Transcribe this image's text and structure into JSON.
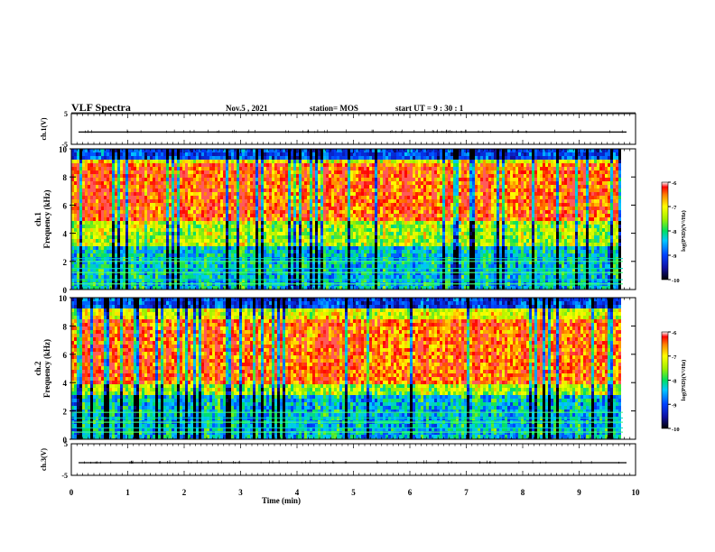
{
  "header": {
    "title": "VLF Spectra",
    "date": "Nov.5  , 2021",
    "station": "station= MOS",
    "start_ut": "start  UT =   9  : 30 : 1"
  },
  "chart_data": [
    {
      "type": "line",
      "panel": "ch1 waveform",
      "ylabel": "ch.1(V)",
      "ylim": [
        -5,
        5
      ],
      "y_tick_labels": [
        "5",
        "-5"
      ],
      "series": [
        {
          "values_approx_constant": -1
        }
      ]
    },
    {
      "type": "heatmap",
      "panel": "ch1 spectrogram",
      "ylabel": "ch.1\nFrequency (kHz)",
      "xlim": [
        0,
        10
      ],
      "ylim": [
        0,
        10
      ],
      "y_tick_labels": [
        "0",
        "2",
        "4",
        "6",
        "8",
        "10"
      ],
      "colorbar": {
        "label": "log(PSD)(V²/Hz)",
        "range": [
          -10,
          -6
        ],
        "tick_labels": [
          "-6",
          "-7",
          "-8",
          "-9",
          "-10"
        ]
      },
      "intense_band_khz": [
        5,
        9
      ],
      "horizontal_lines_khz": [
        0.4,
        0.7,
        1.2,
        1.5,
        2.0,
        2.2
      ]
    },
    {
      "type": "heatmap",
      "panel": "ch2 spectrogram",
      "ylabel": "ch.2\nFrequency (kHz)",
      "xlim": [
        0,
        10
      ],
      "ylim": [
        0,
        10
      ],
      "y_tick_labels": [
        "0",
        "2",
        "4",
        "6",
        "8",
        "10"
      ],
      "colorbar": {
        "label": "log(PSD)(V²/Hz)",
        "range": [
          -10,
          -6
        ],
        "tick_labels": [
          "-6",
          "-7",
          "-8",
          "-9",
          "-10"
        ]
      },
      "intense_band_khz": [
        4,
        8.5
      ],
      "horizontal_lines_khz": [
        0.5,
        0.8,
        1.2,
        1.5,
        1.9
      ]
    },
    {
      "type": "line",
      "panel": "ch3 waveform",
      "ylabel": "ch.3(V)",
      "ylim": [
        -5,
        5
      ],
      "y_tick_labels": [
        "5",
        "-5"
      ],
      "xlabel": "Time  (min)",
      "xlim": [
        0,
        10
      ],
      "x_tick_labels": [
        "0",
        "1",
        "2",
        "3",
        "4",
        "5",
        "6",
        "7",
        "8",
        "9",
        "10"
      ],
      "series": [
        {
          "values_approx_constant": -1
        }
      ]
    }
  ]
}
